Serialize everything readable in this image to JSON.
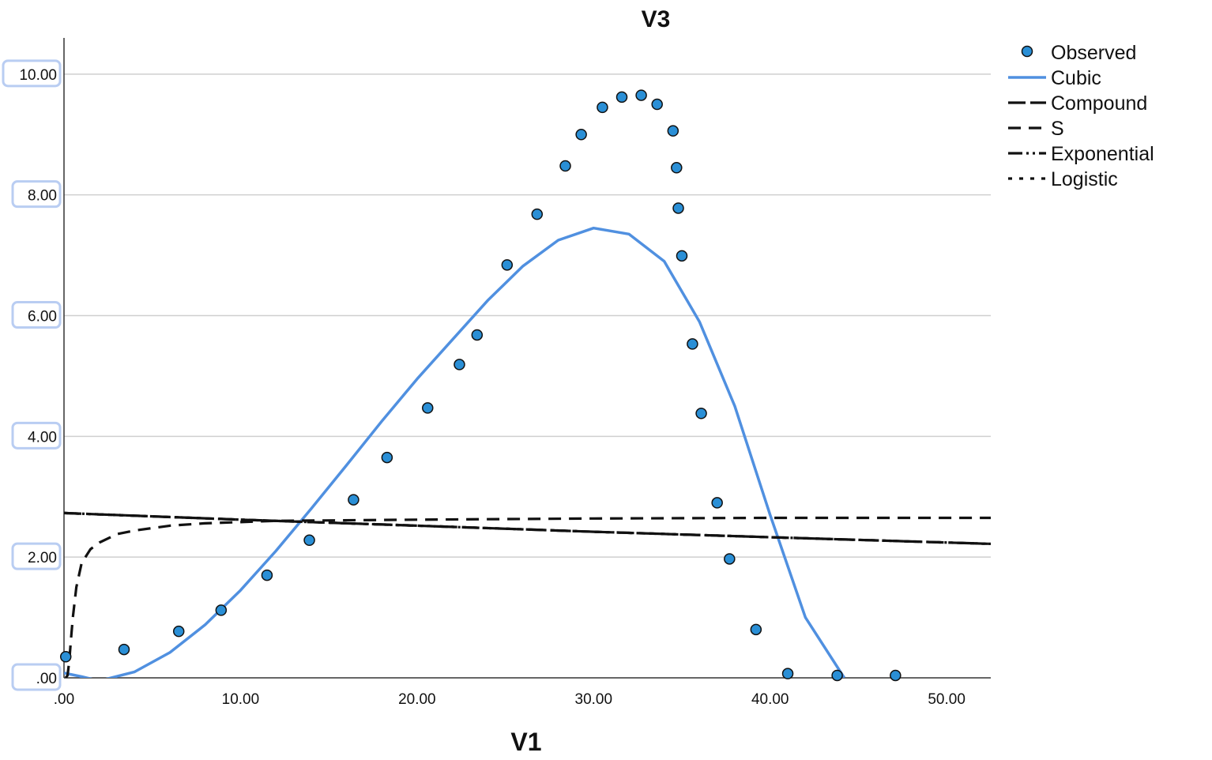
{
  "chart_data": {
    "type": "scatter",
    "title": "V3",
    "xlabel": "V1",
    "ylabel": "",
    "xlim": [
      0,
      52.5
    ],
    "ylim": [
      0,
      10.6
    ],
    "x_ticks": [
      ".00",
      "10.00",
      "20.00",
      "30.00",
      "40.00",
      "50.00"
    ],
    "x_tick_values": [
      0,
      10,
      20,
      30,
      40,
      50
    ],
    "y_ticks": [
      ".00",
      "2.00",
      "4.00",
      "6.00",
      "8.00",
      "10.00"
    ],
    "y_tick_values": [
      0,
      2,
      4,
      6,
      8,
      10
    ],
    "grid": "horizontal",
    "legend_position": "top-right",
    "observed": {
      "name": "Observed",
      "color": "#2a8fd6",
      "points": [
        [
          0.1,
          0.35
        ],
        [
          3.4,
          0.47
        ],
        [
          6.5,
          0.77
        ],
        [
          8.9,
          1.12
        ],
        [
          11.5,
          1.7
        ],
        [
          13.9,
          2.28
        ],
        [
          16.4,
          2.95
        ],
        [
          18.3,
          3.65
        ],
        [
          20.6,
          4.47
        ],
        [
          22.4,
          5.19
        ],
        [
          23.4,
          5.68
        ],
        [
          25.1,
          6.84
        ],
        [
          26.8,
          7.68
        ],
        [
          28.4,
          8.48
        ],
        [
          29.3,
          9.0
        ],
        [
          30.5,
          9.45
        ],
        [
          31.6,
          9.62
        ],
        [
          32.7,
          9.65
        ],
        [
          33.6,
          9.5
        ],
        [
          34.5,
          9.06
        ],
        [
          34.7,
          8.45
        ],
        [
          34.8,
          7.78
        ],
        [
          35.0,
          6.99
        ],
        [
          35.6,
          5.53
        ],
        [
          36.1,
          4.38
        ],
        [
          37.0,
          2.9
        ],
        [
          37.7,
          1.97
        ],
        [
          39.2,
          0.8
        ],
        [
          41.0,
          0.07
        ],
        [
          43.8,
          0.04
        ],
        [
          47.1,
          0.04
        ]
      ]
    },
    "series": [
      {
        "name": "Cubic",
        "style": "solid",
        "color": "#5090e0",
        "x": [
          0,
          1,
          2,
          4,
          6,
          8,
          10,
          12,
          14,
          16,
          18,
          20,
          22,
          24,
          26,
          28,
          30,
          32,
          34,
          36,
          38,
          40,
          42,
          44.2
        ],
        "y": [
          0.08,
          0.02,
          -0.05,
          0.1,
          0.42,
          0.88,
          1.45,
          2.1,
          2.8,
          3.52,
          4.25,
          4.95,
          5.6,
          6.25,
          6.82,
          7.25,
          7.45,
          7.35,
          6.9,
          5.9,
          4.5,
          2.7,
          1.0,
          0.0
        ]
      },
      {
        "name": "Compound",
        "style": "long-dash",
        "color": "#111111",
        "x": [
          0,
          10,
          20,
          30,
          40,
          52.5
        ],
        "y": [
          2.73,
          2.62,
          2.52,
          2.42,
          2.33,
          2.22
        ]
      },
      {
        "name": "S",
        "style": "dash",
        "color": "#111111",
        "x": [
          0.1,
          0.2,
          0.3,
          0.4,
          0.5,
          0.7,
          1.0,
          1.5,
          2.0,
          3.0,
          4.0,
          6.0,
          8.0,
          12.0,
          20.0,
          30.0,
          40.0,
          52.5
        ],
        "y": [
          0.0,
          0.04,
          0.28,
          0.65,
          1.0,
          1.5,
          1.9,
          2.13,
          2.24,
          2.38,
          2.44,
          2.52,
          2.56,
          2.6,
          2.62,
          2.64,
          2.65,
          2.65
        ]
      },
      {
        "name": "Exponential",
        "style": "dash-dot-dot",
        "color": "#111111",
        "x": [
          0,
          10,
          20,
          30,
          40,
          52.5
        ],
        "y": [
          2.73,
          2.62,
          2.52,
          2.42,
          2.33,
          2.22
        ]
      },
      {
        "name": "Logistic",
        "style": "dot",
        "color": "#111111",
        "x": [
          0,
          10,
          20,
          30,
          40,
          52.5
        ],
        "y": [
          2.73,
          2.62,
          2.52,
          2.42,
          2.33,
          2.22
        ]
      }
    ]
  }
}
